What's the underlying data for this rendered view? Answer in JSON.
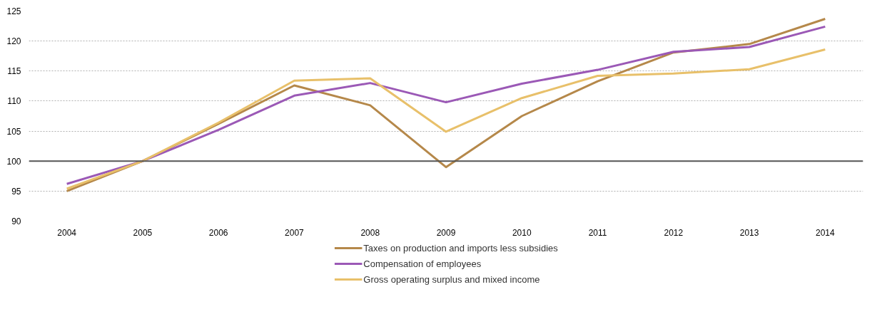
{
  "chart_data": {
    "type": "line",
    "categories": [
      "2004",
      "2005",
      "2006",
      "2007",
      "2008",
      "2009",
      "2010",
      "2011",
      "2012",
      "2013",
      "2014"
    ],
    "series": [
      {
        "name": "Taxes on production and imports less subsidies",
        "color": "#b5884a",
        "values": [
          95.0,
          100.0,
          106.2,
          112.6,
          109.3,
          99.0,
          107.5,
          113.3,
          118.1,
          119.5,
          123.7
        ]
      },
      {
        "name": "Compensation of employees",
        "color": "#9b59b6",
        "values": [
          96.2,
          100.0,
          105.2,
          110.9,
          113.0,
          109.8,
          112.9,
          115.2,
          118.2,
          119.0,
          122.4
        ]
      },
      {
        "name": "Gross operating surplus and mixed income",
        "color": "#e8c06a",
        "values": [
          95.4,
          100.0,
          106.4,
          113.4,
          113.8,
          104.9,
          110.5,
          114.2,
          114.6,
          115.3,
          118.6
        ]
      }
    ],
    "ylim": [
      90,
      125
    ],
    "yticks": [
      90,
      95,
      100,
      105,
      110,
      115,
      120,
      125
    ],
    "ref_lines": [
      {
        "axis": "y",
        "value": 100,
        "color": "#555555"
      }
    ],
    "grid": "y",
    "legend": "bottom",
    "line_style": "solid",
    "marker": "none"
  }
}
